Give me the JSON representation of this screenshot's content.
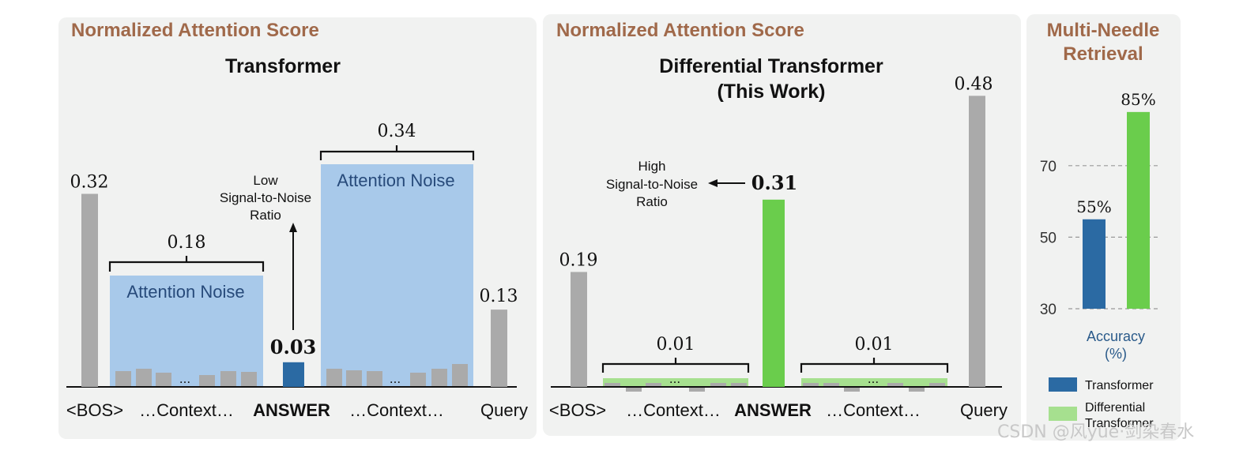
{
  "colors": {
    "gray_bar": "#aaaaaa",
    "blue_bar": "#2b6aa3",
    "green_bar": "#6acd4c",
    "noise_fill": "#a8c9ea",
    "light_green": "#a6e08f",
    "panel_bg": "#f1f2f1",
    "panel_title": "#a0694a"
  },
  "chart_data": [
    {
      "type": "bar",
      "panel_title": "Normalized Attention Score",
      "title": "Transformer",
      "categories": [
        "<BOS>",
        "…Context…",
        "ANSWER",
        "…Context…",
        "Query"
      ],
      "values": [
        0.32,
        0.18,
        0.03,
        0.34,
        0.13
      ],
      "value_labels": [
        "0.32",
        "0.18",
        "0.03",
        "0.34",
        "0.13"
      ],
      "noise_label": "Attention Noise",
      "ellipsis": "...",
      "annotation": [
        "Low",
        "Signal-to-Noise",
        "Ratio"
      ]
    },
    {
      "type": "bar",
      "panel_title": "Normalized Attention Score",
      "title": [
        "Differential Transformer",
        "(This Work)"
      ],
      "categories": [
        "<BOS>",
        "…Context…",
        "ANSWER",
        "…Context…",
        "Query"
      ],
      "values": [
        0.19,
        0.01,
        0.31,
        0.01,
        0.48
      ],
      "value_labels": [
        "0.19",
        "0.01",
        "0.31",
        "0.01",
        "0.48"
      ],
      "ellipsis": "...",
      "annotation": [
        "High",
        "Signal-to-Noise",
        "Ratio"
      ]
    },
    {
      "type": "bar",
      "title": [
        "Multi-Needle",
        "Retrieval"
      ],
      "series": [
        {
          "name": "Transformer",
          "values": [
            55
          ]
        },
        {
          "name": "Differential Transformer",
          "values": [
            85
          ]
        }
      ],
      "value_labels": [
        "55%",
        "85%"
      ],
      "ylabel": [
        "Accuracy",
        "(%)"
      ],
      "yticks": [
        30,
        50,
        70
      ],
      "ylim": [
        30,
        88
      ],
      "grid": "dashed",
      "legend": [
        "Transformer",
        "Differential Transformer"
      ],
      "legend_position": "bottom"
    }
  ],
  "watermark": "CSDN @风yu̇e·剑染春水"
}
